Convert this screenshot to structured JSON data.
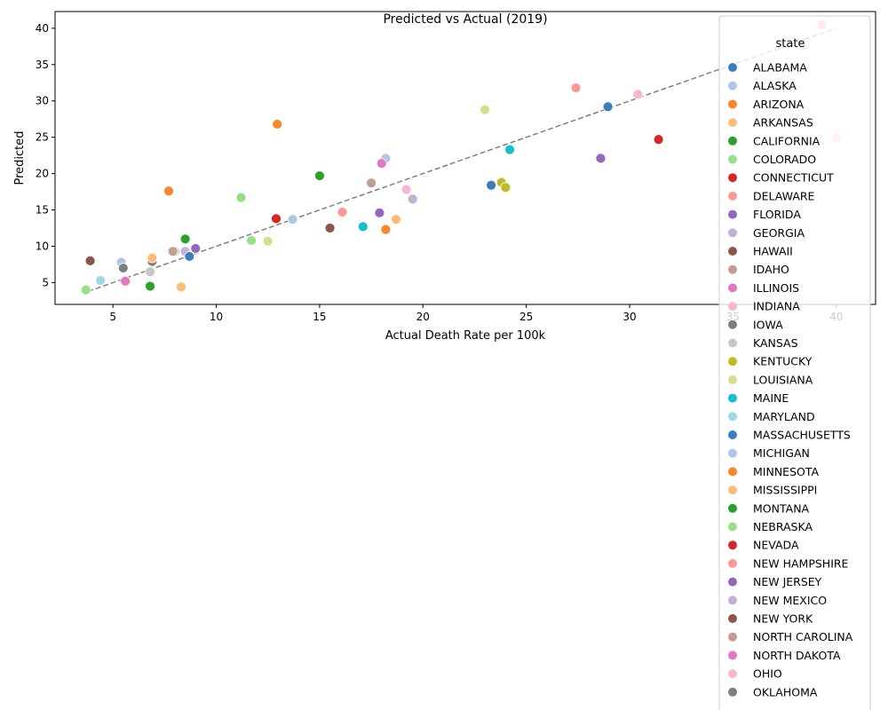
{
  "chart_data": {
    "type": "scatter",
    "title": "Predicted vs Actual (2019)",
    "xlabel": "Actual Death Rate per 100k",
    "ylabel": "Predicted",
    "xlim": [
      2.2,
      41.9
    ],
    "ylim": [
      2.0,
      42.3
    ],
    "xticks": [
      5,
      10,
      15,
      20,
      25,
      30,
      35,
      40
    ],
    "yticks": [
      5,
      10,
      15,
      20,
      25,
      30,
      35,
      40
    ],
    "grid": false,
    "reference_line": {
      "style": "dashed",
      "color": "#808080",
      "x": [
        3.8,
        40.0
      ],
      "y": [
        3.8,
        40.0
      ]
    },
    "legend": {
      "title": "state",
      "placement": "upper-right"
    },
    "series": [
      {
        "name": "ALABAMA",
        "color": "#3a7fbb",
        "points": [
          [
            28.95,
            29.2
          ]
        ]
      },
      {
        "name": "ALASKA",
        "color": "#aec7e8",
        "points": [
          [
            18.2,
            22.1
          ],
          [
            5.4,
            7.8
          ]
        ]
      },
      {
        "name": "ARIZONA",
        "color": "#f7872a",
        "points": [
          [
            12.95,
            26.8
          ],
          [
            7.7,
            17.6
          ]
        ]
      },
      {
        "name": "ARKANSAS",
        "color": "#ffbb78",
        "points": [
          [
            18.7,
            13.7
          ],
          [
            8.3,
            4.4
          ]
        ]
      },
      {
        "name": "CALIFORNIA",
        "color": "#2ca02c",
        "points": [
          [
            15.0,
            19.7
          ],
          [
            8.5,
            11.0
          ],
          [
            6.8,
            4.5
          ]
        ]
      },
      {
        "name": "COLORADO",
        "color": "#98df8a",
        "points": [
          [
            11.2,
            16.7
          ],
          [
            11.7,
            10.8
          ],
          [
            3.7,
            4.0
          ]
        ]
      },
      {
        "name": "CONNECTICUT",
        "color": "#d62728",
        "points": [
          [
            31.4,
            24.7
          ],
          [
            12.9,
            13.8
          ]
        ]
      },
      {
        "name": "DELAWARE",
        "color": "#ff9896",
        "points": [
          [
            27.4,
            31.8
          ],
          [
            16.1,
            14.7
          ]
        ]
      },
      {
        "name": "FLORIDA",
        "color": "#9467bd",
        "points": [
          [
            28.6,
            22.1
          ],
          [
            17.9,
            14.6
          ],
          [
            9.0,
            9.7
          ]
        ]
      },
      {
        "name": "GEORGIA",
        "color": "#c5b0d5",
        "points": [
          [
            19.5,
            16.5
          ],
          [
            8.5,
            9.3
          ]
        ]
      },
      {
        "name": "HAWAII",
        "color": "#8c564b",
        "points": [
          [
            15.5,
            12.5
          ],
          [
            3.9,
            8.0
          ]
        ]
      },
      {
        "name": "IDAHO",
        "color": "#c49c94",
        "points": [
          [
            17.5,
            18.7
          ]
        ]
      },
      {
        "name": "ILLINOIS",
        "color": "#e377c2",
        "points": [
          [
            18.0,
            21.4
          ],
          [
            5.6,
            5.2
          ]
        ]
      },
      {
        "name": "INDIANA",
        "color": "#f7b6d2",
        "points": [
          [
            30.4,
            30.9
          ],
          [
            19.2,
            17.8
          ]
        ]
      },
      {
        "name": "IOWA",
        "color": "#7f7f7f",
        "points": [
          [
            5.5,
            7.0
          ],
          [
            6.9,
            7.9
          ]
        ]
      },
      {
        "name": "KANSAS",
        "color": "#c7c7c7",
        "points": [
          [
            8.0,
            9.3
          ],
          [
            6.8,
            6.5
          ]
        ]
      },
      {
        "name": "KENTUCKY",
        "color": "#bcbd22",
        "points": [
          [
            23.8,
            18.8
          ],
          [
            24.0,
            18.1
          ]
        ]
      },
      {
        "name": "LOUISIANA",
        "color": "#dbdb8d",
        "points": [
          [
            23.0,
            28.8
          ],
          [
            12.5,
            10.7
          ]
        ]
      },
      {
        "name": "MAINE",
        "color": "#17becf",
        "points": [
          [
            24.2,
            23.3
          ],
          [
            17.1,
            12.7
          ]
        ]
      },
      {
        "name": "MARYLAND",
        "color": "#9edae5",
        "points": [
          [
            4.4,
            5.3
          ]
        ]
      },
      {
        "name": "MASSACHUSETTS",
        "color": "#3a7fbb",
        "points": [
          [
            23.3,
            18.4
          ],
          [
            8.7,
            8.6
          ]
        ]
      },
      {
        "name": "MICHIGAN",
        "color": "#aec7e8",
        "points": [
          [
            13.7,
            13.7
          ]
        ]
      },
      {
        "name": "MINNESOTA",
        "color": "#f7872a",
        "points": [
          [
            18.2,
            12.3
          ]
        ]
      },
      {
        "name": "MISSISSIPPI",
        "color": "#ffbb78",
        "points": [
          [
            6.9,
            8.4
          ]
        ]
      },
      {
        "name": "MONTANA",
        "color": "#2ca02c",
        "points": []
      },
      {
        "name": "NEBRASKA",
        "color": "#98df8a",
        "points": []
      },
      {
        "name": "NEVADA",
        "color": "#d62728",
        "points": []
      },
      {
        "name": "NEW HAMPSHIRE",
        "color": "#ff9896",
        "points": [
          [
            39.3,
            40.5
          ]
        ]
      },
      {
        "name": "NEW JERSEY",
        "color": "#9467bd",
        "points": []
      },
      {
        "name": "NEW MEXICO",
        "color": "#c5b0d5",
        "points": []
      },
      {
        "name": "NEW YORK",
        "color": "#8c564b",
        "points": []
      },
      {
        "name": "NORTH CAROLINA",
        "color": "#c49c94",
        "points": [
          [
            7.9,
            9.3
          ]
        ]
      },
      {
        "name": "NORTH DAKOTA",
        "color": "#e377c2",
        "points": []
      },
      {
        "name": "OHIO",
        "color": "#f7b6d2",
        "points": [
          [
            40.0,
            24.9
          ]
        ]
      },
      {
        "name": "OKLAHOMA",
        "color": "#7f7f7f",
        "points": []
      }
    ]
  }
}
